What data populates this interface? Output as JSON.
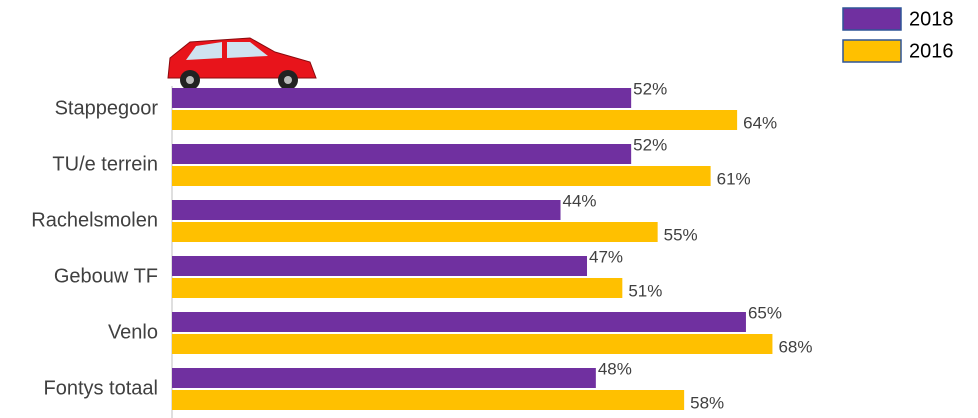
{
  "chart_data": {
    "type": "barh",
    "categories": [
      "Stappegoor",
      "TU/e terrein",
      "Rachelsmolen",
      "Gebouw TF",
      "Venlo",
      "Fontys totaal"
    ],
    "series": [
      {
        "name": "2018",
        "color": "#7030a0",
        "values": [
          52,
          52,
          44,
          47,
          65,
          48
        ],
        "value_labels": [
          "52%",
          "52%",
          "44%",
          "47%",
          "65%",
          "48%"
        ]
      },
      {
        "name": "2016",
        "color": "#ffc000",
        "values": [
          64,
          61,
          55,
          51,
          68,
          58
        ],
        "value_labels": [
          "64%",
          "61%",
          "55%",
          "51%",
          "68%",
          "58%"
        ]
      }
    ],
    "xlim": [
      0,
      100
    ],
    "legend": "top-right"
  }
}
